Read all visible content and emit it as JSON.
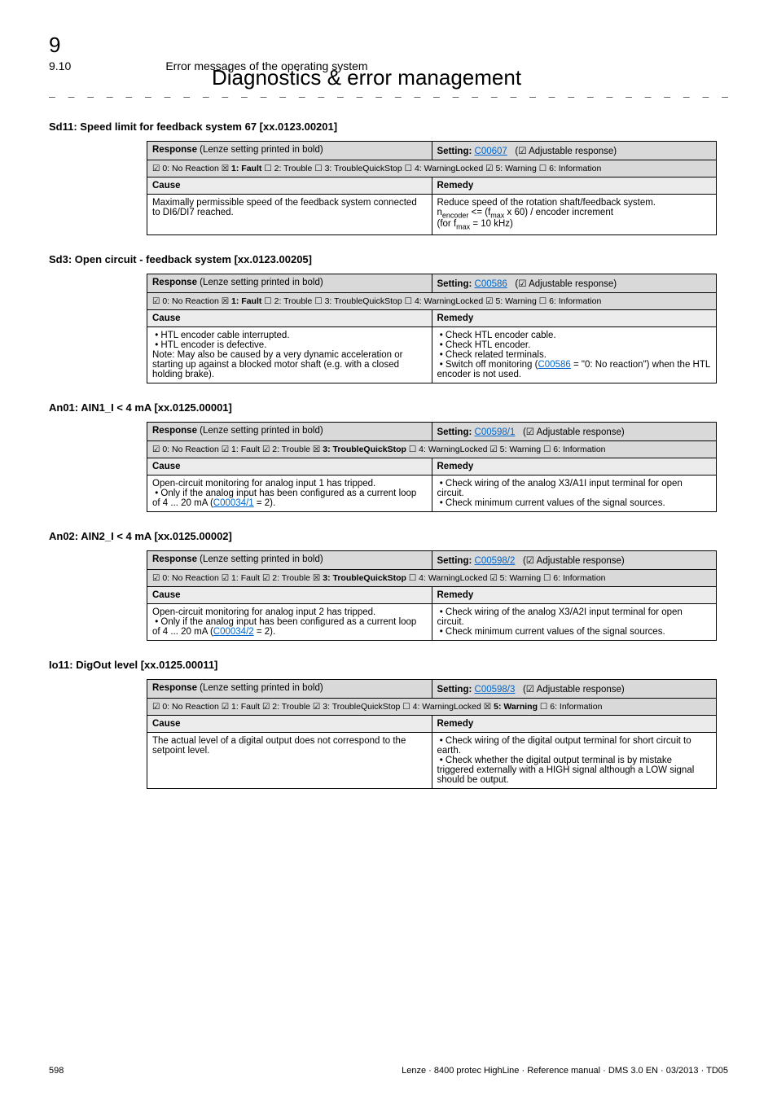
{
  "chapter": {
    "num": "9",
    "title": "Diagnostics & error management"
  },
  "section": {
    "num": "9.10",
    "title": "Error messages of the operating system"
  },
  "dashes": "_ _ _ _ _ _ _ _ _ _ _ _ _ _ _ _ _ _ _ _ _ _ _ _ _ _ _ _ _ _ _ _ _ _ _ _ _ _ _ _ _ _ _ _ _ _ _ _ _ _ _ _ _ _ _ _ _ _ _ _ _ _ _ _",
  "labels": {
    "response": "Response (Lenze setting printed in bold)",
    "setting": "Setting:",
    "adjustable": "(☑ Adjustable response)",
    "cause": "Cause",
    "remedy": "Remedy"
  },
  "options_generic": "☑ 0: No Reaction  ☒ 1: Fault  ☐ 2: Trouble  ☐ 3: TroubleQuickStop  ☐ 4: WarningLocked  ☑ 5: Warning  ☐ 6: Information",
  "entries": [
    {
      "title": "Sd11: Speed limit for feedback system 67 [xx.0123.00201]",
      "setting_code": "C00607",
      "options": "☑ 0: No Reaction  ☒ 1: Fault  ☐ 2: Trouble  ☐ 3: TroubleQuickStop  ☐ 4: WarningLocked  ☑ 5: Warning  ☐ 6: Information",
      "cause": "Maximally permissible speed of the feedback system connected to DI6/DI7 reached.",
      "remedy_html": "Reduce speed of the rotation shaft/feedback system.<br>n<sub>encoder</sub> <= (f<sub>max</sub> x 60) / encoder increment<br>(for f<sub>max</sub> = 10 kHz)"
    },
    {
      "title": "Sd3: Open circuit - feedback system [xx.0123.00205]",
      "setting_code": "C00586",
      "options": "☑ 0: No Reaction  ☒ 1: Fault  ☐ 2: Trouble  ☐ 3: TroubleQuickStop  ☐ 4: WarningLocked  ☑ 5: Warning  ☐ 6: Information",
      "cause_html": "&nbsp;• HTL encoder cable interrupted.<br>&nbsp;• HTL encoder is defective.<br>Note: May also be caused by a very dynamic acceleration or starting up against a blocked motor shaft (e.g. with a closed holding brake).",
      "remedy_html": "&nbsp;• Check HTL encoder cable.<br>&nbsp;• Check HTL encoder.<br>&nbsp;• Check related terminals.<br>&nbsp;• Switch off monitoring (<span class=\"link\">C00586</span> = \"0: No reaction\") when the HTL encoder is not used."
    },
    {
      "title": "An01: AIN1_I < 4 mA [xx.0125.00001]",
      "setting_code": "C00598/1",
      "options": "☑ 0: No Reaction  ☑ 1: Fault  ☑ 2: Trouble  ☒ 3: TroubleQuickStop  ☐ 4: WarningLocked  ☑ 5: Warning  ☐ 6: Information",
      "cause_html": "Open-circuit monitoring for analog input 1 has tripped.<br>&nbsp;• Only if the analog input has been configured as a current loop of 4 ... 20 mA (<span class=\"link\">C00034/1</span> = 2).",
      "remedy_html": "&nbsp;• Check wiring of the analog X3/A1I input terminal for open circuit.<br>&nbsp;• Check minimum current values of the signal sources."
    },
    {
      "title": "An02: AIN2_I < 4 mA [xx.0125.00002]",
      "setting_code": "C00598/2",
      "options": "☑ 0: No Reaction  ☑ 1: Fault  ☑ 2: Trouble  ☒ 3: TroubleQuickStop  ☐ 4: WarningLocked  ☑ 5: Warning  ☐ 6: Information",
      "cause_html": "Open-circuit monitoring for analog input 2 has tripped.<br>&nbsp;• Only if the analog input has been configured as a current loop of 4 ... 20 mA (<span class=\"link\">C00034/2</span> = 2).",
      "remedy_html": "&nbsp;• Check wiring of the analog X3/A2I input terminal for open circuit.<br>&nbsp;• Check minimum current values of the signal sources."
    },
    {
      "title": "Io11: DigOut level [xx.0125.00011]",
      "setting_code": "C00598/3",
      "options": "☑ 0: No Reaction  ☑ 1: Fault  ☑ 2: Trouble  ☑ 3: TroubleQuickStop  ☐ 4: WarningLocked  ☒ 5: Warning  ☐ 6: Information",
      "cause_html": "The actual level of a digital output does not correspond to the setpoint level.",
      "remedy_html": "&nbsp;• Check wiring of the digital output terminal for short circuit to earth.<br>&nbsp;• Check whether the digital output terminal is by mistake triggered externally with a HIGH signal although a LOW signal should be output."
    }
  ],
  "footer": {
    "page": "598",
    "right": "Lenze · 8400 protec HighLine · Reference manual · DMS 3.0 EN · 03/2013 · TD05"
  }
}
